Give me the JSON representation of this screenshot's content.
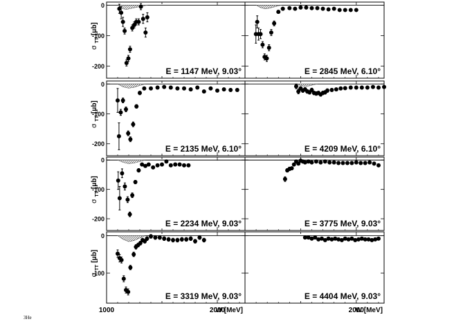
{
  "figure": {
    "ylabel_main": "σ",
    "ylabel_sub": "TT",
    "ylabel_unit": "[μb]",
    "xlabel": "W [MeV]",
    "caption_text": "3He"
  },
  "chart_data": [
    {
      "type": "scatter",
      "panel": "left-1",
      "label": "E = 1147 MeV, 9.03°",
      "xlim": [
        1000,
        2250
      ],
      "ylim": [
        -240,
        10
      ],
      "yticks": [
        0,
        -100,
        -200
      ],
      "x": [
        1115,
        1132,
        1148,
        1163,
        1180,
        1197,
        1212,
        1232,
        1250,
        1268,
        1290,
        1310,
        1330,
        1352,
        1368
      ],
      "y": [
        -12,
        -25,
        -55,
        -85,
        -190,
        -175,
        -145,
        -75,
        -65,
        -55,
        -55,
        -5,
        -45,
        -90,
        -40
      ],
      "yerr": [
        15,
        20,
        15,
        10,
        10,
        10,
        10,
        10,
        10,
        10,
        10,
        10,
        15,
        15,
        15
      ],
      "band": [
        [
          1108,
          0
        ],
        [
          1130,
          -8
        ],
        [
          1150,
          -12
        ],
        [
          1180,
          -14
        ],
        [
          1220,
          -11
        ],
        [
          1270,
          -7
        ],
        [
          1320,
          -3
        ],
        [
          1370,
          0
        ]
      ],
      "xticks": [
        1000,
        2000
      ]
    },
    {
      "type": "scatter",
      "panel": "right-1",
      "label": "E = 2845 MeV, 6.10°",
      "xlim": [
        1000,
        2250
      ],
      "ylim": [
        -240,
        10
      ],
      "yticks": [
        0,
        -100,
        -200
      ],
      "x": [
        1098,
        1110,
        1122,
        1140,
        1158,
        1176,
        1196,
        1216,
        1236,
        1262,
        1300,
        1340,
        1400,
        1450,
        1500,
        1550,
        1600,
        1650,
        1700,
        1750,
        1800,
        1850,
        1900,
        1950,
        2000
      ],
      "y": [
        -95,
        -55,
        -95,
        -95,
        -130,
        -170,
        -175,
        -140,
        -90,
        -60,
        -22,
        -12,
        -10,
        -12,
        -8,
        -8,
        -10,
        -10,
        -12,
        -14,
        -12,
        -16,
        -16,
        -16,
        -16
      ],
      "yerr": [
        30,
        20,
        20,
        15,
        10,
        10,
        10,
        10,
        10,
        8,
        5,
        5,
        4,
        4,
        4,
        4,
        4,
        4,
        4,
        4,
        4,
        4,
        4,
        4,
        4
      ],
      "band": [
        [
          1100,
          0
        ],
        [
          1140,
          -8
        ],
        [
          1180,
          -12
        ],
        [
          1220,
          -10
        ],
        [
          1260,
          -6
        ],
        [
          1300,
          -2
        ],
        [
          1330,
          0
        ]
      ],
      "xticks": [
        1000,
        2000
      ]
    },
    {
      "type": "scatter",
      "panel": "left-2",
      "label": "E = 2135 MeV, 6.10°",
      "xlim": [
        1000,
        2250
      ],
      "ylim": [
        -240,
        10
      ],
      "yticks": [
        0,
        -100,
        -200
      ],
      "x": [
        1100,
        1112,
        1128,
        1148,
        1175,
        1195,
        1215,
        1240,
        1270,
        1300,
        1340,
        1400,
        1460,
        1520,
        1580,
        1640,
        1700,
        1760,
        1820,
        1880,
        1940,
        2000,
        2060,
        2120,
        2180
      ],
      "y": [
        -55,
        -175,
        -95,
        -55,
        -85,
        -165,
        -185,
        -135,
        -75,
        -30,
        -15,
        -15,
        -12,
        -10,
        -12,
        -15,
        -15,
        -18,
        -12,
        -25,
        -15,
        -22,
        -18,
        -20,
        -20
      ],
      "yerr": [
        40,
        45,
        10,
        8,
        8,
        8,
        8,
        8,
        6,
        6,
        5,
        5,
        5,
        5,
        5,
        5,
        5,
        5,
        5,
        5,
        5,
        5,
        5,
        5,
        5
      ],
      "band": [
        [
          1100,
          0
        ],
        [
          1150,
          -10
        ],
        [
          1200,
          -14
        ],
        [
          1250,
          -11
        ],
        [
          1300,
          -5
        ],
        [
          1350,
          0
        ]
      ],
      "xticks": [
        1000,
        2000
      ]
    },
    {
      "type": "scatter",
      "panel": "right-2",
      "label": "E = 4209 MeV, 6.10°",
      "xlim": [
        1000,
        2250
      ],
      "ylim": [
        -240,
        10
      ],
      "yticks": [
        0,
        -100,
        -200
      ],
      "x": [
        1460,
        1480,
        1500,
        1520,
        1540,
        1560,
        1580,
        1600,
        1620,
        1640,
        1660,
        1680,
        1700,
        1720,
        1740,
        1780,
        1820,
        1860,
        1900,
        1950,
        2000,
        2050,
        2100,
        2150,
        2200,
        2250
      ],
      "y": [
        -8,
        -25,
        -15,
        -22,
        -18,
        -25,
        -28,
        -20,
        -30,
        -32,
        -30,
        -35,
        -30,
        -28,
        -22,
        -20,
        -18,
        -15,
        -14,
        -12,
        -12,
        -12,
        -12,
        -10,
        -12,
        -10
      ],
      "yerr": [
        8,
        8,
        6,
        6,
        6,
        6,
        6,
        6,
        6,
        6,
        6,
        6,
        6,
        6,
        6,
        5,
        5,
        5,
        5,
        5,
        5,
        5,
        5,
        5,
        5,
        5
      ],
      "band": [
        [
          1460,
          0
        ],
        [
          1500,
          -5
        ],
        [
          1540,
          -8
        ],
        [
          1580,
          -6
        ],
        [
          1620,
          -2
        ],
        [
          1650,
          0
        ]
      ],
      "xticks": [
        1000,
        2000
      ]
    },
    {
      "type": "scatter",
      "panel": "left-3",
      "label": "E = 2234 MeV, 9.03°",
      "xlim": [
        1000,
        2250
      ],
      "ylim": [
        -240,
        10
      ],
      "yticks": [
        0,
        -100,
        -200
      ],
      "x": [
        1105,
        1118,
        1140,
        1165,
        1190,
        1210,
        1232,
        1260,
        1290,
        1320,
        1350,
        1380,
        1420,
        1460,
        1500,
        1540,
        1580,
        1620,
        1660,
        1700,
        1740
      ],
      "y": [
        -70,
        -130,
        -45,
        -90,
        -135,
        -185,
        -120,
        -75,
        -35,
        -15,
        -20,
        -15,
        -25,
        -18,
        -15,
        -5,
        -18,
        -15,
        -15,
        -18,
        -18
      ],
      "yerr": [
        30,
        40,
        15,
        12,
        10,
        8,
        8,
        6,
        6,
        5,
        5,
        5,
        5,
        5,
        5,
        5,
        5,
        5,
        5,
        5,
        5
      ],
      "band": [
        [
          1100,
          0
        ],
        [
          1150,
          -8
        ],
        [
          1200,
          -12
        ],
        [
          1250,
          -10
        ],
        [
          1300,
          -5
        ],
        [
          1350,
          0
        ]
      ],
      "xticks": [
        1000,
        2000
      ]
    },
    {
      "type": "scatter",
      "panel": "right-3",
      "label": "E = 3775 MeV, 9.03°",
      "xlim": [
        1000,
        2250
      ],
      "ylim": [
        -240,
        10
      ],
      "yticks": [
        0,
        -100,
        -200
      ],
      "x": [
        1360,
        1380,
        1400,
        1420,
        1440,
        1460,
        1480,
        1500,
        1520,
        1540,
        1570,
        1600,
        1640,
        1680,
        1720,
        1760,
        1800,
        1840,
        1880,
        1920,
        1960,
        2000,
        2040,
        2080,
        2120,
        2160,
        2200
      ],
      "y": [
        -65,
        -35,
        -30,
        -28,
        -15,
        -5,
        -12,
        -2,
        -5,
        -8,
        -5,
        -8,
        -5,
        -8,
        -5,
        -8,
        -8,
        -10,
        -10,
        -10,
        -10,
        -8,
        -10,
        -10,
        -8,
        -12,
        -18
      ],
      "yerr": [
        8,
        6,
        6,
        5,
        5,
        5,
        5,
        5,
        5,
        5,
        5,
        5,
        5,
        5,
        5,
        5,
        5,
        5,
        5,
        5,
        5,
        5,
        5,
        5,
        5,
        5,
        5
      ],
      "band": [],
      "xticks": [
        1000,
        2000
      ]
    },
    {
      "type": "scatter",
      "panel": "left-4",
      "label": "E = 3319 MeV, 9.03°",
      "xlim": [
        1000,
        2250
      ],
      "ylim": [
        -180,
        10
      ],
      "yticks": [
        0,
        -100
      ],
      "x": [
        1100,
        1118,
        1135,
        1155,
        1175,
        1195,
        1215,
        1245,
        1265,
        1285,
        1305,
        1325,
        1345,
        1365,
        1400,
        1440,
        1480,
        1520,
        1560,
        1600,
        1640,
        1680,
        1720,
        1760,
        1800,
        1840,
        1880
      ],
      "y": [
        -48,
        -60,
        -65,
        -115,
        -145,
        -150,
        -85,
        -50,
        -30,
        -25,
        -20,
        -12,
        -15,
        -8,
        -2,
        -5,
        -5,
        -8,
        -10,
        -12,
        -12,
        -10,
        -10,
        -8,
        -15,
        -5,
        -12
      ],
      "yerr": [
        10,
        10,
        8,
        8,
        8,
        8,
        6,
        6,
        6,
        5,
        5,
        5,
        5,
        5,
        5,
        5,
        5,
        5,
        5,
        5,
        5,
        5,
        5,
        5,
        5,
        5,
        5
      ],
      "band": [
        [
          1100,
          0
        ],
        [
          1150,
          -10
        ],
        [
          1200,
          -16
        ],
        [
          1250,
          -13
        ],
        [
          1300,
          -6
        ],
        [
          1350,
          0
        ]
      ],
      "xticks": [
        1000,
        2000
      ],
      "xlabel": "W [MeV]"
    },
    {
      "type": "scatter",
      "panel": "right-4",
      "label": "E = 4404 MeV, 9.03°",
      "xlim": [
        1000,
        2250
      ],
      "ylim": [
        -180,
        10
      ],
      "yticks": [
        0,
        -100
      ],
      "x": [
        1540,
        1570,
        1600,
        1630,
        1660,
        1690,
        1720,
        1750,
        1780,
        1810,
        1840,
        1870,
        1900,
        1930,
        1960,
        1990,
        2020,
        2050,
        2080,
        2110,
        2140,
        2170,
        2200
      ],
      "y": [
        -5,
        -5,
        -8,
        -5,
        -10,
        -8,
        -12,
        -8,
        -10,
        -8,
        -10,
        -12,
        -8,
        -10,
        -8,
        -12,
        -10,
        -8,
        -10,
        -10,
        -12,
        -10,
        -8
      ],
      "yerr": [
        4,
        4,
        4,
        4,
        4,
        4,
        4,
        4,
        4,
        4,
        4,
        4,
        4,
        4,
        4,
        4,
        4,
        4,
        4,
        4,
        4,
        4,
        4
      ],
      "band": [],
      "xticks": [
        1000,
        2000
      ],
      "xlabel": "W [MeV]"
    }
  ]
}
